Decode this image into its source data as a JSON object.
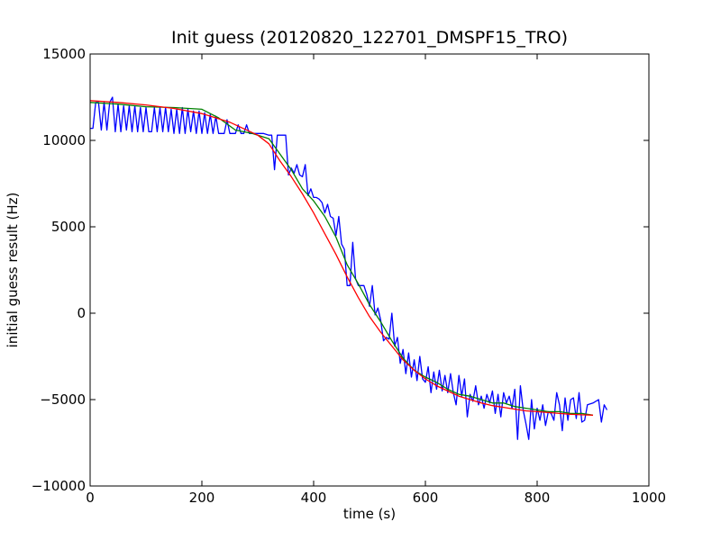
{
  "chart_data": {
    "type": "line",
    "title": "Init guess (20120820_122701_DMSPF15_TRO)",
    "xlabel": "time (s)",
    "ylabel": "initial guess result (Hz)",
    "xlim": [
      0,
      1000
    ],
    "ylim": [
      -10000,
      15000
    ],
    "xticks": [
      0,
      200,
      400,
      600,
      800,
      1000
    ],
    "yticks": [
      -10000,
      -5000,
      0,
      5000,
      10000,
      15000
    ],
    "xtick_labels": [
      "0",
      "200",
      "400",
      "600",
      "800",
      "1000"
    ],
    "ytick_labels": [
      "−10000",
      "−5000",
      "0",
      "5000",
      "10000",
      "15000"
    ],
    "grid": false,
    "colors": {
      "raw": "#0000ff",
      "smoothed": "#008000",
      "fit": "#ff0000",
      "frame": "#000000"
    },
    "series": [
      {
        "color": "#0000ff",
        "points": [
          [
            0,
            10700
          ],
          [
            5,
            10700
          ],
          [
            10,
            12200
          ],
          [
            15,
            12200
          ],
          [
            20,
            10600
          ],
          [
            25,
            12200
          ],
          [
            30,
            10600
          ],
          [
            35,
            12200
          ],
          [
            40,
            12500
          ],
          [
            45,
            10500
          ],
          [
            50,
            12100
          ],
          [
            55,
            10500
          ],
          [
            60,
            12000
          ],
          [
            65,
            10600
          ],
          [
            70,
            12000
          ],
          [
            75,
            10500
          ],
          [
            80,
            12000
          ],
          [
            85,
            10500
          ],
          [
            90,
            11900
          ],
          [
            95,
            10500
          ],
          [
            100,
            11900
          ],
          [
            105,
            10500
          ],
          [
            110,
            10500
          ],
          [
            115,
            11900
          ],
          [
            120,
            10500
          ],
          [
            125,
            11900
          ],
          [
            130,
            10500
          ],
          [
            135,
            11900
          ],
          [
            140,
            10500
          ],
          [
            145,
            11800
          ],
          [
            150,
            10400
          ],
          [
            155,
            11800
          ],
          [
            160,
            10400
          ],
          [
            165,
            11900
          ],
          [
            170,
            10400
          ],
          [
            175,
            11800
          ],
          [
            180,
            10500
          ],
          [
            185,
            11700
          ],
          [
            190,
            10400
          ],
          [
            195,
            11700
          ],
          [
            200,
            10400
          ],
          [
            205,
            11600
          ],
          [
            210,
            10400
          ],
          [
            215,
            11500
          ],
          [
            220,
            10400
          ],
          [
            225,
            11400
          ],
          [
            230,
            10400
          ],
          [
            240,
            10400
          ],
          [
            245,
            11200
          ],
          [
            250,
            10400
          ],
          [
            260,
            10400
          ],
          [
            265,
            10900
          ],
          [
            270,
            10400
          ],
          [
            275,
            10400
          ],
          [
            280,
            10900
          ],
          [
            285,
            10400
          ],
          [
            290,
            10400
          ],
          [
            300,
            10400
          ],
          [
            310,
            10400
          ],
          [
            320,
            10300
          ],
          [
            325,
            10300
          ],
          [
            330,
            8300
          ],
          [
            335,
            10300
          ],
          [
            345,
            10300
          ],
          [
            350,
            10300
          ],
          [
            355,
            8000
          ],
          [
            360,
            8400
          ],
          [
            365,
            8100
          ],
          [
            370,
            8600
          ],
          [
            375,
            8000
          ],
          [
            380,
            7900
          ],
          [
            385,
            8600
          ],
          [
            390,
            6800
          ],
          [
            395,
            7200
          ],
          [
            400,
            6700
          ],
          [
            405,
            6700
          ],
          [
            410,
            6600
          ],
          [
            415,
            6400
          ],
          [
            420,
            5800
          ],
          [
            425,
            6300
          ],
          [
            430,
            5600
          ],
          [
            435,
            5500
          ],
          [
            440,
            4500
          ],
          [
            445,
            5600
          ],
          [
            450,
            4000
          ],
          [
            455,
            3700
          ],
          [
            460,
            1600
          ],
          [
            465,
            1600
          ],
          [
            470,
            4100
          ],
          [
            475,
            2000
          ],
          [
            480,
            1600
          ],
          [
            485,
            1600
          ],
          [
            490,
            1600
          ],
          [
            495,
            1100
          ],
          [
            500,
            400
          ],
          [
            505,
            1600
          ],
          [
            510,
            -100
          ],
          [
            515,
            300
          ],
          [
            520,
            -400
          ],
          [
            525,
            -1600
          ],
          [
            530,
            -1400
          ],
          [
            535,
            -1500
          ],
          [
            540,
            0
          ],
          [
            545,
            -1900
          ],
          [
            550,
            -1400
          ],
          [
            555,
            -2900
          ],
          [
            560,
            -2100
          ],
          [
            565,
            -3500
          ],
          [
            570,
            -2300
          ],
          [
            575,
            -3700
          ],
          [
            580,
            -2700
          ],
          [
            585,
            -3900
          ],
          [
            590,
            -2500
          ],
          [
            595,
            -3800
          ],
          [
            600,
            -4000
          ],
          [
            605,
            -3100
          ],
          [
            610,
            -4600
          ],
          [
            615,
            -3400
          ],
          [
            620,
            -4400
          ],
          [
            625,
            -3300
          ],
          [
            630,
            -4500
          ],
          [
            635,
            -3600
          ],
          [
            640,
            -4600
          ],
          [
            645,
            -3500
          ],
          [
            650,
            -4600
          ],
          [
            655,
            -5300
          ],
          [
            660,
            -3600
          ],
          [
            665,
            -4800
          ],
          [
            670,
            -3800
          ],
          [
            675,
            -6000
          ],
          [
            680,
            -4700
          ],
          [
            685,
            -5100
          ],
          [
            690,
            -4200
          ],
          [
            695,
            -5300
          ],
          [
            700,
            -4800
          ],
          [
            705,
            -5500
          ],
          [
            710,
            -4700
          ],
          [
            715,
            -5200
          ],
          [
            720,
            -4500
          ],
          [
            725,
            -5800
          ],
          [
            730,
            -4700
          ],
          [
            735,
            -6000
          ],
          [
            740,
            -4600
          ],
          [
            745,
            -5200
          ],
          [
            750,
            -4800
          ],
          [
            755,
            -5500
          ],
          [
            760,
            -4400
          ],
          [
            765,
            -7300
          ],
          [
            770,
            -4200
          ],
          [
            775,
            -5600
          ],
          [
            780,
            -6400
          ],
          [
            785,
            -7300
          ],
          [
            790,
            -5000
          ],
          [
            795,
            -6700
          ],
          [
            800,
            -5500
          ],
          [
            805,
            -6200
          ],
          [
            810,
            -5300
          ],
          [
            815,
            -6500
          ],
          [
            820,
            -5700
          ],
          [
            825,
            -5800
          ],
          [
            830,
            -6200
          ],
          [
            835,
            -4600
          ],
          [
            840,
            -5300
          ],
          [
            845,
            -6800
          ],
          [
            850,
            -4900
          ],
          [
            855,
            -6200
          ],
          [
            860,
            -5000
          ],
          [
            865,
            -4900
          ],
          [
            870,
            -6100
          ],
          [
            875,
            -4600
          ],
          [
            880,
            -6300
          ],
          [
            885,
            -6200
          ],
          [
            890,
            -5300
          ],
          [
            900,
            -5200
          ],
          [
            910,
            -5000
          ],
          [
            915,
            -6300
          ],
          [
            920,
            -5300
          ],
          [
            925,
            -5600
          ]
        ]
      },
      {
        "color": "#008000",
        "points": [
          [
            0,
            12200
          ],
          [
            50,
            12100
          ],
          [
            100,
            11950
          ],
          [
            150,
            11900
          ],
          [
            200,
            11800
          ],
          [
            230,
            11300
          ],
          [
            260,
            10600
          ],
          [
            290,
            10400
          ],
          [
            320,
            10100
          ],
          [
            340,
            9200
          ],
          [
            360,
            8300
          ],
          [
            380,
            7200
          ],
          [
            400,
            6500
          ],
          [
            420,
            5600
          ],
          [
            440,
            4400
          ],
          [
            460,
            2800
          ],
          [
            480,
            1700
          ],
          [
            500,
            500
          ],
          [
            520,
            -500
          ],
          [
            540,
            -1600
          ],
          [
            560,
            -2600
          ],
          [
            580,
            -3300
          ],
          [
            600,
            -3700
          ],
          [
            620,
            -4000
          ],
          [
            640,
            -4400
          ],
          [
            660,
            -4700
          ],
          [
            680,
            -4800
          ],
          [
            700,
            -5000
          ],
          [
            720,
            -5200
          ],
          [
            740,
            -5200
          ],
          [
            760,
            -5400
          ],
          [
            780,
            -5500
          ],
          [
            800,
            -5600
          ],
          [
            820,
            -5700
          ],
          [
            840,
            -5700
          ],
          [
            860,
            -5800
          ],
          [
            880,
            -5800
          ],
          [
            900,
            -5900
          ]
        ]
      },
      {
        "color": "#ff0000",
        "points": [
          [
            0,
            12300
          ],
          [
            50,
            12200
          ],
          [
            100,
            12050
          ],
          [
            150,
            11850
          ],
          [
            200,
            11550
          ],
          [
            250,
            11050
          ],
          [
            300,
            10300
          ],
          [
            320,
            9800
          ],
          [
            340,
            8800
          ],
          [
            360,
            7900
          ],
          [
            380,
            6900
          ],
          [
            400,
            5800
          ],
          [
            420,
            4600
          ],
          [
            440,
            3400
          ],
          [
            460,
            2100
          ],
          [
            480,
            900
          ],
          [
            500,
            -200
          ],
          [
            520,
            -1100
          ],
          [
            540,
            -1900
          ],
          [
            560,
            -2700
          ],
          [
            580,
            -3300
          ],
          [
            600,
            -3800
          ],
          [
            620,
            -4200
          ],
          [
            640,
            -4500
          ],
          [
            660,
            -4800
          ],
          [
            680,
            -5000
          ],
          [
            700,
            -5200
          ],
          [
            720,
            -5350
          ],
          [
            740,
            -5450
          ],
          [
            760,
            -5550
          ],
          [
            780,
            -5650
          ],
          [
            800,
            -5700
          ],
          [
            820,
            -5750
          ],
          [
            840,
            -5800
          ],
          [
            860,
            -5850
          ],
          [
            880,
            -5880
          ],
          [
            900,
            -5900
          ]
        ]
      }
    ]
  }
}
